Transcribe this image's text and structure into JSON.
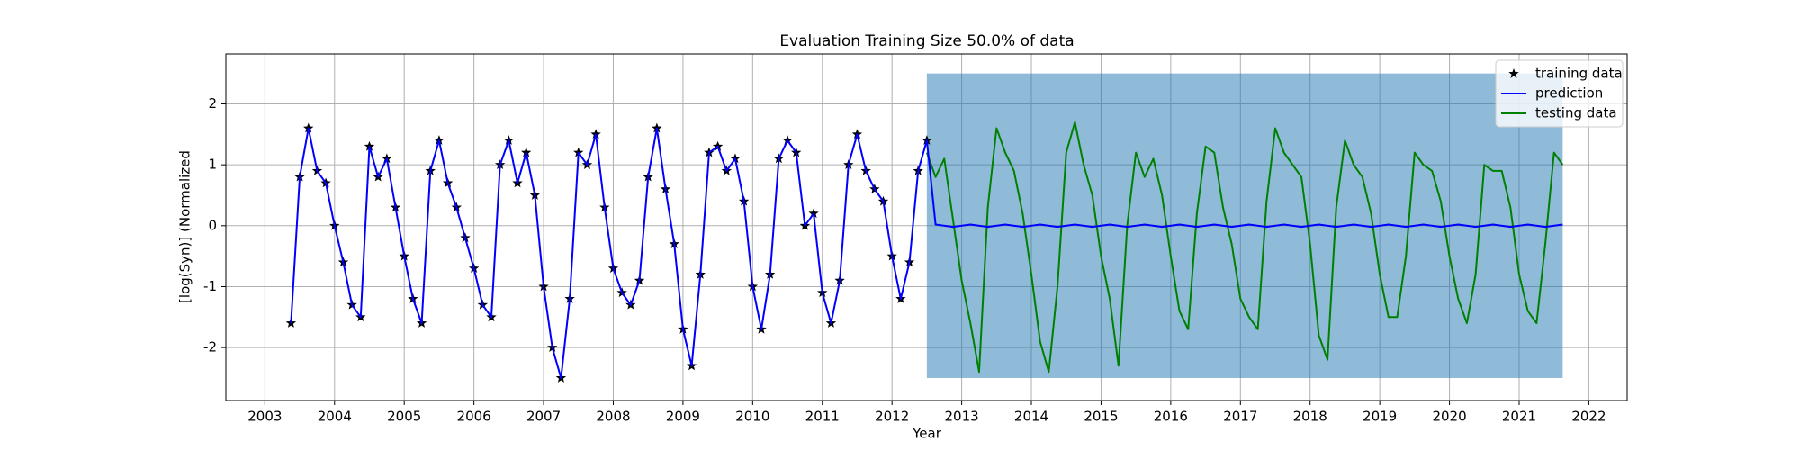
{
  "chart_data": {
    "type": "line",
    "title": "Evaluation Training Size 50.0% of data",
    "xlabel": "Year",
    "ylabel": "[log(Syn)] (Normalized",
    "xlim": [
      2002.44,
      2022.55
    ],
    "ylim": [
      -2.87,
      2.82
    ],
    "xticks": [
      2003,
      2004,
      2005,
      2006,
      2007,
      2008,
      2009,
      2010,
      2011,
      2012,
      2013,
      2014,
      2015,
      2016,
      2017,
      2018,
      2019,
      2020,
      2021,
      2022
    ],
    "yticks": [
      -2,
      -1,
      0,
      1,
      2
    ],
    "grid": true,
    "legend": "upper right",
    "band": {
      "x": [
        2012.5,
        2021.625
      ],
      "lower": [
        -2.5,
        -2.5
      ],
      "upper": [
        2.5,
        2.5
      ],
      "color": "#1f77b4",
      "opacity": 0.5
    },
    "series": [
      {
        "name": "training data",
        "color": "#000000",
        "style": "markers",
        "x": [
          2003.375,
          2003.5,
          2003.625,
          2003.75,
          2003.875,
          2004,
          2004.125,
          2004.25,
          2004.375,
          2004.5,
          2004.625,
          2004.75,
          2004.875,
          2005,
          2005.125,
          2005.25,
          2005.375,
          2005.5,
          2005.625,
          2005.75,
          2005.875,
          2006,
          2006.125,
          2006.25,
          2006.375,
          2006.5,
          2006.625,
          2006.75,
          2006.875,
          2007,
          2007.125,
          2007.25,
          2007.375,
          2007.5,
          2007.625,
          2007.75,
          2007.875,
          2008,
          2008.125,
          2008.25,
          2008.375,
          2008.5,
          2008.625,
          2008.75,
          2008.875,
          2009,
          2009.125,
          2009.25,
          2009.375,
          2009.5,
          2009.625,
          2009.75,
          2009.875,
          2010,
          2010.125,
          2010.25,
          2010.375,
          2010.5,
          2010.625,
          2010.75,
          2010.875,
          2011,
          2011.125,
          2011.25,
          2011.375,
          2011.5,
          2011.625,
          2011.75,
          2011.875,
          2012,
          2012.125,
          2012.25,
          2012.375,
          2012.5
        ],
        "values": [
          -1.6,
          0.8,
          1.6,
          0.9,
          0.7,
          0.0,
          -0.6,
          -1.3,
          -1.5,
          1.3,
          0.8,
          1.1,
          0.3,
          -0.5,
          -1.2,
          -1.6,
          0.9,
          1.4,
          0.7,
          0.3,
          -0.2,
          -0.7,
          -1.3,
          -1.5,
          1.0,
          1.4,
          0.7,
          1.2,
          0.5,
          -1.0,
          -2.0,
          -2.5,
          -1.2,
          1.2,
          1.0,
          1.5,
          0.3,
          -0.7,
          -1.1,
          -1.3,
          -0.9,
          0.8,
          1.6,
          0.6,
          -0.3,
          -1.7,
          -2.3,
          -0.8,
          1.2,
          1.3,
          0.9,
          1.1,
          0.4,
          -1.0,
          -1.7,
          -0.8,
          1.1,
          1.4,
          1.2,
          0.0,
          0.2,
          -1.1,
          -1.6,
          -0.9,
          1.0,
          1.5,
          0.9,
          0.6,
          0.4,
          -0.5,
          -1.2,
          -0.6,
          0.9,
          1.4
        ]
      },
      {
        "name": "prediction",
        "color": "#0000ff",
        "style": "line",
        "x": [
          2003.375,
          2003.5,
          2003.625,
          2003.75,
          2003.875,
          2004,
          2004.125,
          2004.25,
          2004.375,
          2004.5,
          2004.625,
          2004.75,
          2004.875,
          2005,
          2005.125,
          2005.25,
          2005.375,
          2005.5,
          2005.625,
          2005.75,
          2005.875,
          2006,
          2006.125,
          2006.25,
          2006.375,
          2006.5,
          2006.625,
          2006.75,
          2006.875,
          2007,
          2007.125,
          2007.25,
          2007.375,
          2007.5,
          2007.625,
          2007.75,
          2007.875,
          2008,
          2008.125,
          2008.25,
          2008.375,
          2008.5,
          2008.625,
          2008.75,
          2008.875,
          2009,
          2009.125,
          2009.25,
          2009.375,
          2009.5,
          2009.625,
          2009.75,
          2009.875,
          2010,
          2010.125,
          2010.25,
          2010.375,
          2010.5,
          2010.625,
          2010.75,
          2010.875,
          2011,
          2011.125,
          2011.25,
          2011.375,
          2011.5,
          2011.625,
          2011.75,
          2011.875,
          2012,
          2012.125,
          2012.25,
          2012.375,
          2012.5,
          2012.625,
          2012.875,
          2013.125,
          2013.375,
          2013.625,
          2013.875,
          2014.125,
          2014.375,
          2014.625,
          2014.875,
          2015.125,
          2015.375,
          2015.625,
          2015.875,
          2016.125,
          2016.375,
          2016.625,
          2016.875,
          2017.125,
          2017.375,
          2017.625,
          2017.875,
          2018.125,
          2018.375,
          2018.625,
          2018.875,
          2019.125,
          2019.375,
          2019.625,
          2019.875,
          2020.125,
          2020.375,
          2020.625,
          2020.875,
          2021.125,
          2021.375,
          2021.625
        ],
        "values": [
          -1.6,
          0.8,
          1.6,
          0.9,
          0.7,
          0.0,
          -0.6,
          -1.3,
          -1.5,
          1.3,
          0.8,
          1.1,
          0.3,
          -0.5,
          -1.2,
          -1.6,
          0.9,
          1.4,
          0.7,
          0.3,
          -0.2,
          -0.7,
          -1.3,
          -1.5,
          1.0,
          1.4,
          0.7,
          1.2,
          0.5,
          -1.0,
          -2.0,
          -2.5,
          -1.2,
          1.2,
          1.0,
          1.5,
          0.3,
          -0.7,
          -1.1,
          -1.3,
          -0.9,
          0.8,
          1.6,
          0.6,
          -0.3,
          -1.7,
          -2.3,
          -0.8,
          1.2,
          1.3,
          0.9,
          1.1,
          0.4,
          -1.0,
          -1.7,
          -0.8,
          1.1,
          1.4,
          1.2,
          0.0,
          0.2,
          -1.1,
          -1.6,
          -0.9,
          1.0,
          1.5,
          0.9,
          0.6,
          0.4,
          -0.5,
          -1.2,
          -0.6,
          0.9,
          1.4,
          0.02,
          -0.02,
          0.02,
          -0.02,
          0.02,
          -0.02,
          0.02,
          -0.02,
          0.02,
          -0.02,
          0.02,
          -0.02,
          0.02,
          -0.02,
          0.02,
          -0.02,
          0.02,
          -0.02,
          0.02,
          -0.02,
          0.02,
          -0.02,
          0.02,
          -0.02,
          0.02,
          -0.02,
          0.02,
          -0.02,
          0.02,
          -0.02,
          0.02,
          -0.02,
          0.02,
          -0.02,
          0.02,
          -0.02,
          0.02
        ]
      },
      {
        "name": "testing data",
        "color": "#008000",
        "style": "line",
        "x": [
          2012.5,
          2012.625,
          2012.75,
          2012.875,
          2013,
          2013.125,
          2013.25,
          2013.375,
          2013.5,
          2013.625,
          2013.75,
          2013.875,
          2014,
          2014.125,
          2014.25,
          2014.375,
          2014.5,
          2014.625,
          2014.75,
          2014.875,
          2015,
          2015.125,
          2015.25,
          2015.375,
          2015.5,
          2015.625,
          2015.75,
          2015.875,
          2016,
          2016.125,
          2016.25,
          2016.375,
          2016.5,
          2016.625,
          2016.75,
          2016.875,
          2017,
          2017.125,
          2017.25,
          2017.375,
          2017.5,
          2017.625,
          2017.75,
          2017.875,
          2018,
          2018.125,
          2018.25,
          2018.375,
          2018.5,
          2018.625,
          2018.75,
          2018.875,
          2019,
          2019.125,
          2019.25,
          2019.375,
          2019.5,
          2019.625,
          2019.75,
          2019.875,
          2020,
          2020.125,
          2020.25,
          2020.375,
          2020.5,
          2020.625,
          2020.75,
          2020.875,
          2021,
          2021.125,
          2021.25,
          2021.375,
          2021.5,
          2021.625
        ],
        "values": [
          1.2,
          0.8,
          1.1,
          0.1,
          -0.9,
          -1.6,
          -2.4,
          0.3,
          1.6,
          1.2,
          0.9,
          0.2,
          -0.8,
          -1.9,
          -2.4,
          -1.0,
          1.2,
          1.7,
          1.0,
          0.5,
          -0.5,
          -1.2,
          -2.3,
          0.0,
          1.2,
          0.8,
          1.1,
          0.5,
          -0.5,
          -1.4,
          -1.7,
          0.2,
          1.3,
          1.2,
          0.3,
          -0.3,
          -1.2,
          -1.5,
          -1.7,
          0.4,
          1.6,
          1.2,
          1.0,
          0.8,
          -0.3,
          -1.8,
          -2.2,
          0.3,
          1.4,
          1.0,
          0.8,
          0.2,
          -0.8,
          -1.5,
          -1.5,
          -0.5,
          1.2,
          1.0,
          0.9,
          0.4,
          -0.5,
          -1.2,
          -1.6,
          -0.8,
          1.0,
          0.9,
          0.9,
          0.3,
          -0.8,
          -1.4,
          -1.6,
          -0.3,
          1.2,
          1.0
        ]
      }
    ]
  }
}
